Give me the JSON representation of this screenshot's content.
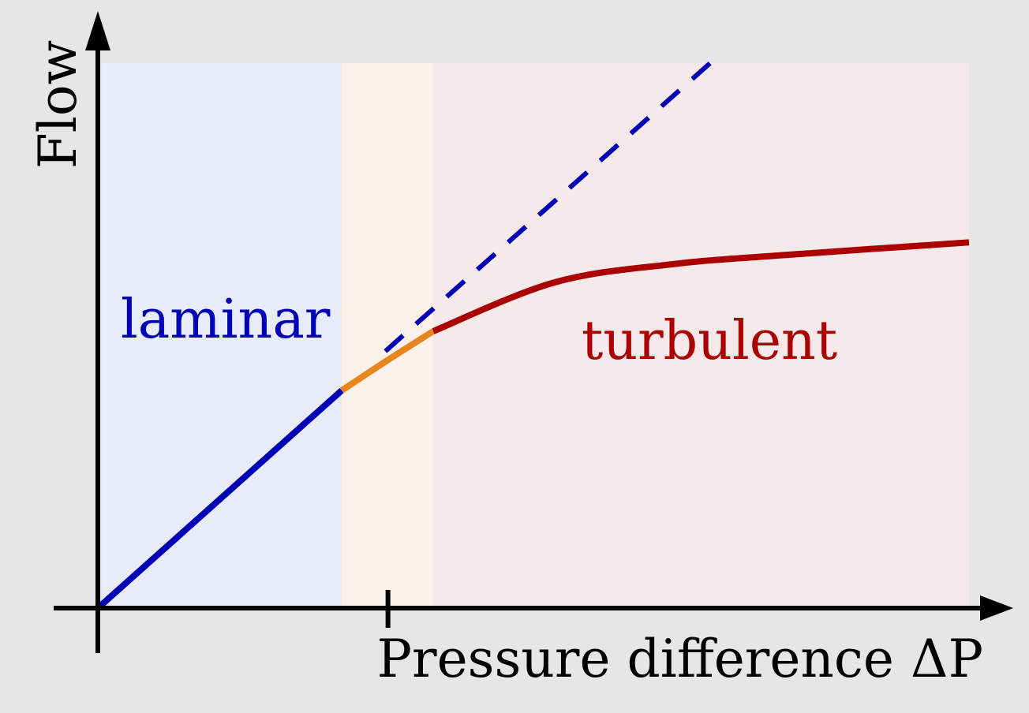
{
  "chart_data": {
    "type": "line",
    "title": "",
    "xlabel": "Pressure difference ΔP",
    "ylabel": "Flow",
    "xlim": [
      0,
      10
    ],
    "ylim": [
      0,
      6.26
    ],
    "grid": false,
    "x_ticks": [
      3.33
    ],
    "regions": [
      {
        "name": "laminar",
        "x_range": [
          0.04,
          2.8
        ],
        "color": "#e8ebfa"
      },
      {
        "name": "transition",
        "x_range": [
          2.8,
          3.85
        ],
        "color": "#fcf1e8"
      },
      {
        "name": "turbulent",
        "x_range": [
          3.85,
          10
        ],
        "color": "#f6e9e9"
      }
    ],
    "series": [
      {
        "name": "laminar",
        "color": "#0000b4",
        "style": "solid",
        "points": [
          [
            0,
            0
          ],
          [
            2.8,
            2.5
          ]
        ]
      },
      {
        "name": "laminar-extrapolation",
        "color": "#0000b4",
        "style": "dashed",
        "points": [
          [
            3.3,
            2.95
          ],
          [
            7.03,
            6.26
          ]
        ]
      },
      {
        "name": "transition",
        "color": "#e8861e",
        "style": "solid",
        "points": [
          [
            2.8,
            2.5
          ],
          [
            3.33,
            2.85
          ],
          [
            3.85,
            3.18
          ]
        ]
      },
      {
        "name": "turbulent",
        "color": "#aa0000",
        "style": "solid",
        "points": [
          [
            3.85,
            3.18
          ],
          [
            5.24,
            3.74
          ],
          [
            6.6,
            3.95
          ],
          [
            7.96,
            4.06
          ],
          [
            10,
            4.2
          ]
        ]
      }
    ],
    "annotations": [
      {
        "text": "laminar",
        "color": "#0000b4"
      },
      {
        "text": "turbulent",
        "color": "#aa0000"
      }
    ]
  }
}
